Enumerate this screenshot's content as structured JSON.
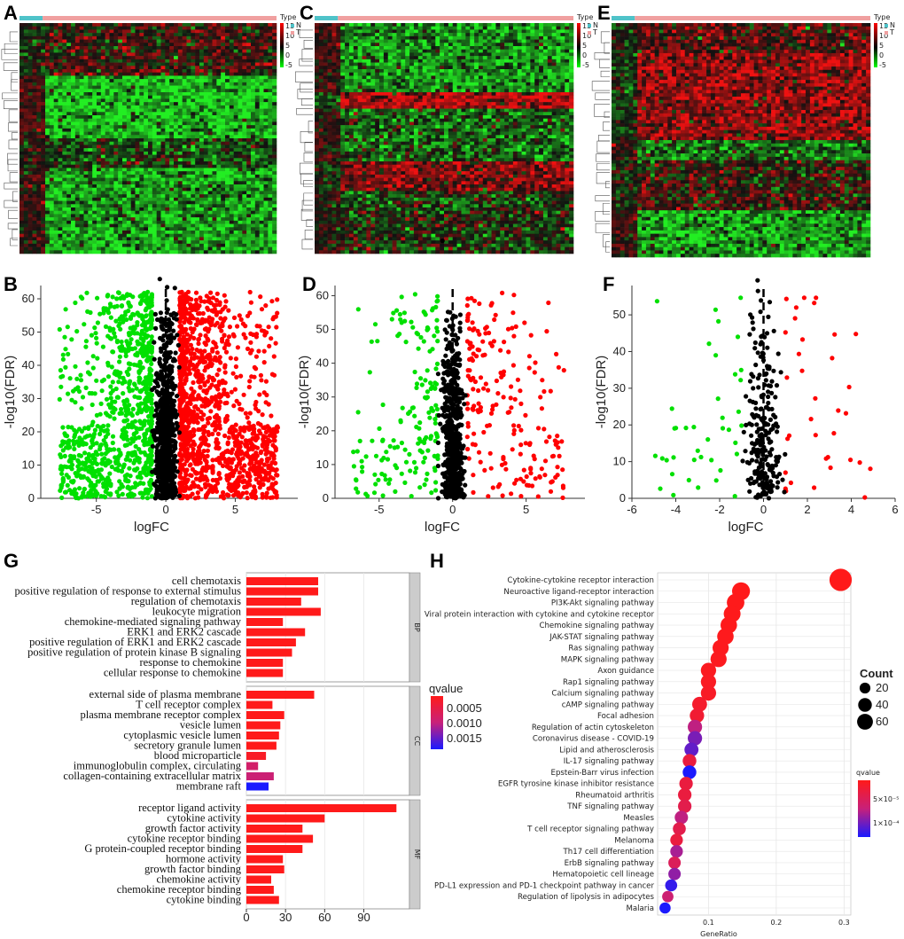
{
  "panel_letters": {
    "A": "A",
    "B": "B",
    "C": "C",
    "D": "D",
    "E": "E",
    "F": "F",
    "G": "G",
    "H": "H"
  },
  "heatmap_legend": {
    "title": "Type",
    "groups": [
      "N",
      "T"
    ],
    "scale": [
      "15",
      "10",
      "5",
      "0",
      "-5"
    ],
    "colors": {
      "N": "#4fc3c9",
      "T": "#f0a0a0"
    }
  },
  "colors": {
    "up": "#ff0000",
    "down": "#00e000",
    "ns": "#000000",
    "q_low": "#ff1a1a",
    "q_mid": "#c8207a",
    "q_high": "#1a1aff",
    "grid": "#e6e6e6"
  },
  "chart_data": [
    {
      "panel": "B",
      "type": "scatter",
      "xlabel": "logFC",
      "ylabel": "-log10(FDR)",
      "xlim": [
        -9,
        9.5
      ],
      "ylim": [
        0,
        64
      ],
      "xticks": [
        "-5",
        "0",
        "5"
      ],
      "xtick_values": [
        -5,
        0,
        5
      ],
      "yticks": [
        "0",
        "10",
        "20",
        "30",
        "40",
        "50",
        "60"
      ],
      "ytick_values": [
        0,
        10,
        20,
        30,
        40,
        50,
        60
      ],
      "vline": 0,
      "cloud": {
        "down_count": 900,
        "up_count": 1300,
        "ns_count": 900
      }
    },
    {
      "panel": "D",
      "type": "scatter",
      "xlabel": "logFC",
      "ylabel": "-log10(FDR)",
      "xlim": [
        -8,
        9
      ],
      "ylim": [
        0,
        63
      ],
      "xticks": [
        "-5",
        "0",
        "5"
      ],
      "xtick_values": [
        -5,
        0,
        5
      ],
      "yticks": [
        "0",
        "10",
        "20",
        "30",
        "40",
        "50",
        "60"
      ],
      "ytick_values": [
        0,
        10,
        20,
        30,
        40,
        50,
        60
      ],
      "vline": 0,
      "cloud": {
        "down_count": 170,
        "up_count": 200,
        "ns_count": 600
      }
    },
    {
      "panel": "F",
      "type": "scatter",
      "xlabel": "logFC",
      "ylabel": "-log10(FDR)",
      "xlim": [
        -6,
        6
      ],
      "ylim": [
        0,
        58
      ],
      "xticks": [
        "-6",
        "-4",
        "-2",
        "0",
        "2",
        "4",
        "6"
      ],
      "xtick_values": [
        -6,
        -4,
        -2,
        0,
        2,
        4,
        6
      ],
      "yticks": [
        "0",
        "10",
        "20",
        "30",
        "40",
        "50"
      ],
      "ytick_values": [
        0,
        10,
        20,
        30,
        40,
        50
      ],
      "vline": 0,
      "cloud": {
        "down_count": 40,
        "up_count": 35,
        "ns_count": 230
      }
    },
    {
      "panel": "G",
      "type": "bar",
      "orientation": "horizontal",
      "xticks": [
        "0",
        "30",
        "60",
        "90"
      ],
      "xtick_values": [
        0,
        30,
        60,
        90
      ],
      "xlim": [
        0,
        125
      ],
      "legend_title": "qvalue",
      "legend_labels": [
        "0.0005",
        "0.0010",
        "0.0015"
      ],
      "groups": [
        {
          "name": "BP",
          "terms": [
            {
              "label": "cell chemotaxis",
              "value": 55,
              "qvalue": 0.0001
            },
            {
              "label": "positive regulation of response to external stimulus",
              "value": 55,
              "qvalue": 0.0001
            },
            {
              "label": "regulation of chemotaxis",
              "value": 42,
              "qvalue": 0.0001
            },
            {
              "label": "leukocyte migration",
              "value": 57,
              "qvalue": 0.0001
            },
            {
              "label": "chemokine-mediated signaling pathway",
              "value": 28,
              "qvalue": 0.0001
            },
            {
              "label": "ERK1 and ERK2 cascade",
              "value": 45,
              "qvalue": 0.0001
            },
            {
              "label": "positive regulation of ERK1 and ERK2 cascade",
              "value": 38,
              "qvalue": 0.0001
            },
            {
              "label": "positive regulation of protein kinase B signaling",
              "value": 35,
              "qvalue": 0.0001
            },
            {
              "label": "response to chemokine",
              "value": 28,
              "qvalue": 0.0001
            },
            {
              "label": "cellular response to chemokine",
              "value": 28,
              "qvalue": 0.0001
            }
          ]
        },
        {
          "name": "CC",
          "terms": [
            {
              "label": "external side of plasma membrane",
              "value": 52,
              "qvalue": 0.0001
            },
            {
              "label": "T cell receptor complex",
              "value": 20,
              "qvalue": 0.0001
            },
            {
              "label": "plasma membrane receptor complex",
              "value": 29,
              "qvalue": 0.0001
            },
            {
              "label": "vesicle lumen",
              "value": 26,
              "qvalue": 0.0001
            },
            {
              "label": "cytoplasmic vesicle lumen",
              "value": 25,
              "qvalue": 0.0001
            },
            {
              "label": "secretory granule lumen",
              "value": 23,
              "qvalue": 0.0001
            },
            {
              "label": "blood microparticle",
              "value": 15,
              "qvalue": 0.0002
            },
            {
              "label": "immunoglobulin complex, circulating",
              "value": 9,
              "qvalue": 0.0008
            },
            {
              "label": "collagen-containing extracellular matrix",
              "value": 21,
              "qvalue": 0.0009
            },
            {
              "label": "membrane raft",
              "value": 17,
              "qvalue": 0.0018
            }
          ]
        },
        {
          "name": "MF",
          "terms": [
            {
              "label": "receptor ligand activity",
              "value": 115,
              "qvalue": 0.0001
            },
            {
              "label": "cytokine activity",
              "value": 60,
              "qvalue": 0.0001
            },
            {
              "label": "growth factor activity",
              "value": 43,
              "qvalue": 0.0001
            },
            {
              "label": "cytokine receptor binding",
              "value": 51,
              "qvalue": 0.0001
            },
            {
              "label": "G protein-coupled receptor binding",
              "value": 43,
              "qvalue": 0.0001
            },
            {
              "label": "hormone activity",
              "value": 28,
              "qvalue": 0.0001
            },
            {
              "label": "growth factor binding",
              "value": 29,
              "qvalue": 0.0001
            },
            {
              "label": "chemokine activity",
              "value": 19,
              "qvalue": 0.0001
            },
            {
              "label": "chemokine receptor binding",
              "value": 21,
              "qvalue": 0.0001
            },
            {
              "label": "cytokine binding",
              "value": 25,
              "qvalue": 0.0001
            }
          ]
        }
      ]
    },
    {
      "panel": "H",
      "type": "scatter",
      "subtype": "dotplot",
      "xlabel": "GeneRatio",
      "xticks": [
        "0.1",
        "0.2",
        "0.3"
      ],
      "xtick_values": [
        0.1,
        0.2,
        0.3
      ],
      "xlim": [
        0.025,
        0.31
      ],
      "size_legend_title": "Count",
      "size_legend": [
        "20",
        "40",
        "60"
      ],
      "size_legend_values": [
        20,
        40,
        60
      ],
      "color_legend_title": "qvalue",
      "color_legend": [
        "5×10⁻⁵",
        "1×10⁻⁴"
      ],
      "terms": [
        {
          "label": "Cytokine-cytokine receptor interaction",
          "ratio": 0.295,
          "count": 70,
          "qvalue": 1e-06
        },
        {
          "label": "Neuroactive ligand-receptor interaction",
          "ratio": 0.148,
          "count": 38,
          "qvalue": 1e-06
        },
        {
          "label": "PI3K-Akt signaling pathway",
          "ratio": 0.14,
          "count": 36,
          "qvalue": 2e-06
        },
        {
          "label": "Viral protein interaction with cytokine and cytokine receptor",
          "ratio": 0.135,
          "count": 32,
          "qvalue": 2e-06
        },
        {
          "label": "Chemokine signaling pathway",
          "ratio": 0.13,
          "count": 30,
          "qvalue": 2e-06
        },
        {
          "label": "JAK-STAT signaling pathway",
          "ratio": 0.125,
          "count": 30,
          "qvalue": 3e-06
        },
        {
          "label": "Ras signaling pathway",
          "ratio": 0.118,
          "count": 28,
          "qvalue": 4e-06
        },
        {
          "label": "MAPK signaling pathway",
          "ratio": 0.115,
          "count": 28,
          "qvalue": 5e-06
        },
        {
          "label": "Axon guidance",
          "ratio": 0.1,
          "count": 24,
          "qvalue": 6e-06
        },
        {
          "label": "Rap1 signaling pathway",
          "ratio": 0.1,
          "count": 24,
          "qvalue": 8e-06
        },
        {
          "label": "Calcium signaling pathway",
          "ratio": 0.1,
          "count": 24,
          "qvalue": 1e-05
        },
        {
          "label": "cAMP signaling pathway",
          "ratio": 0.087,
          "count": 22,
          "qvalue": 1.5e-05
        },
        {
          "label": "Focal adhesion",
          "ratio": 0.083,
          "count": 20,
          "qvalue": 2e-05
        },
        {
          "label": "Regulation of actin cytoskeleton",
          "ratio": 0.08,
          "count": 20,
          "qvalue": 8e-05
        },
        {
          "label": "Coronavirus disease - COVID-19",
          "ratio": 0.08,
          "count": 20,
          "qvalue": 0.00011
        },
        {
          "label": "Lipid and atherosclerosis",
          "ratio": 0.075,
          "count": 18,
          "qvalue": 0.00012
        },
        {
          "label": "IL-17 signaling pathway",
          "ratio": 0.072,
          "count": 17,
          "qvalue": 3e-05
        },
        {
          "label": "Epstein-Barr virus infection",
          "ratio": 0.072,
          "count": 17,
          "qvalue": 0.00015
        },
        {
          "label": "EGFR tyrosine kinase inhibitor resistance",
          "ratio": 0.067,
          "count": 16,
          "qvalue": 3e-05
        },
        {
          "label": "Rheumatoid arthritis",
          "ratio": 0.065,
          "count": 16,
          "qvalue": 3e-05
        },
        {
          "label": "TNF signaling pathway",
          "ratio": 0.065,
          "count": 16,
          "qvalue": 4e-05
        },
        {
          "label": "Measles",
          "ratio": 0.06,
          "count": 15,
          "qvalue": 8e-05
        },
        {
          "label": "T cell receptor signaling pathway",
          "ratio": 0.057,
          "count": 14,
          "qvalue": 4e-05
        },
        {
          "label": "Melanoma",
          "ratio": 0.053,
          "count": 13,
          "qvalue": 3e-05
        },
        {
          "label": "Th17 cell differentiation",
          "ratio": 0.053,
          "count": 13,
          "qvalue": 9e-05
        },
        {
          "label": "ErbB signaling pathway",
          "ratio": 0.05,
          "count": 12,
          "qvalue": 5e-05
        },
        {
          "label": "Hematopoietic cell lineage",
          "ratio": 0.05,
          "count": 12,
          "qvalue": 0.0001
        },
        {
          "label": "PD-L1 expression and PD-1 checkpoint pathway in cancer",
          "ratio": 0.045,
          "count": 11,
          "qvalue": 0.00014
        },
        {
          "label": "Regulation of lipolysis in adipocytes",
          "ratio": 0.04,
          "count": 9,
          "qvalue": 7e-05
        },
        {
          "label": "Malaria",
          "ratio": 0.036,
          "count": 8,
          "qvalue": 0.00015
        }
      ]
    }
  ]
}
